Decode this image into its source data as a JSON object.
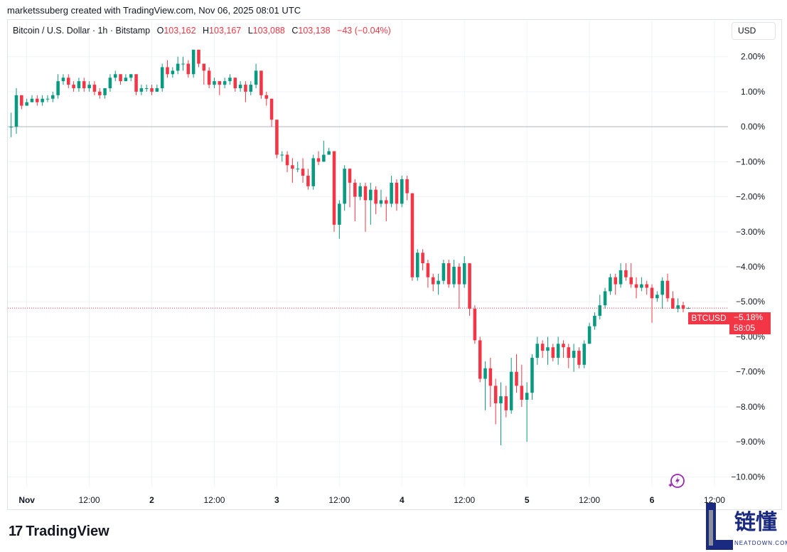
{
  "header": {
    "credit": "marketssuberg created with TradingView.com, Nov 06, 2025 08:01 UTC"
  },
  "legend": {
    "symbol": "Bitcoin / U.S. Dollar · 1h · Bitstamp",
    "o_label": "O",
    "o_value": "103,162",
    "h_label": "H",
    "h_value": "103,167",
    "l_label": "L",
    "l_value": "103,088",
    "c_label": "C",
    "c_value": "103,138",
    "change": "−43 (−0.04%)"
  },
  "currency_button": "USD",
  "ticker_tag": "BTCUSD",
  "axis_tag": {
    "pct": "−5.18%",
    "countdown": "58:05"
  },
  "footer": {
    "brand": "TradingView",
    "brand_mark": "17"
  },
  "watermark": {
    "cn": "链懂",
    "en": "NEATDOWN.COM"
  },
  "colors": {
    "up": "#089981",
    "down": "#f23645",
    "grid": "#f0f3fa",
    "zero_line": "#b2b5be",
    "accent": "#f23645"
  },
  "chart_data": {
    "type": "candlestick",
    "y_unit": "percent change",
    "ylim": [
      -10.4,
      2.4
    ],
    "y_ticks": [
      "2.00%",
      "1.00%",
      "0.00%",
      "−1.00%",
      "−2.00%",
      "−3.00%",
      "−4.00%",
      "−5.00%",
      "−6.00%",
      "−7.00%",
      "−8.00%",
      "−9.00%",
      "−10.00%"
    ],
    "y_tick_values": [
      2,
      1,
      0,
      -1,
      -2,
      -3,
      -4,
      -5,
      -6,
      -7,
      -8,
      -9,
      -10
    ],
    "x_ticks": [
      "Nov",
      "12:00",
      "2",
      "12:00",
      "3",
      "12:00",
      "4",
      "12:00",
      "5",
      "12:00",
      "6",
      "12:00"
    ],
    "x_tick_hours": [
      3,
      15,
      27,
      39,
      51,
      63,
      75,
      87,
      99,
      111,
      123,
      135
    ],
    "grid": true,
    "last_value": -5.18,
    "candles": [
      [
        0.0,
        0.0,
        0.4,
        -0.3
      ],
      [
        0.0,
        0.9,
        1.1,
        -0.2
      ],
      [
        0.9,
        0.6,
        0.9,
        0.5
      ],
      [
        0.6,
        0.7,
        0.8,
        0.6
      ],
      [
        0.7,
        0.8,
        0.9,
        0.7
      ],
      [
        0.8,
        0.7,
        0.9,
        0.6
      ],
      [
        0.7,
        0.8,
        0.9,
        0.6
      ],
      [
        0.8,
        0.8,
        0.9,
        0.7
      ],
      [
        0.8,
        0.9,
        1.0,
        0.7
      ],
      [
        0.9,
        1.3,
        1.5,
        0.8
      ],
      [
        1.3,
        1.4,
        1.5,
        1.2
      ],
      [
        1.4,
        1.2,
        1.5,
        1.1
      ],
      [
        1.2,
        1.1,
        1.3,
        1.0
      ],
      [
        1.1,
        1.3,
        1.4,
        1.0
      ],
      [
        1.3,
        1.1,
        1.4,
        1.0
      ],
      [
        1.1,
        1.2,
        1.3,
        1.0
      ],
      [
        1.2,
        1.0,
        1.3,
        0.9
      ],
      [
        1.0,
        0.9,
        1.1,
        0.8
      ],
      [
        0.9,
        1.1,
        1.1,
        0.8
      ],
      [
        1.1,
        1.4,
        1.5,
        1.0
      ],
      [
        1.4,
        1.5,
        1.6,
        1.3
      ],
      [
        1.5,
        1.3,
        1.5,
        1.2
      ],
      [
        1.3,
        1.4,
        1.5,
        1.3
      ],
      [
        1.4,
        1.5,
        1.5,
        1.3
      ],
      [
        1.5,
        1.0,
        1.5,
        0.9
      ],
      [
        1.0,
        1.1,
        1.2,
        0.9
      ],
      [
        1.1,
        1.1,
        1.2,
        1.0
      ],
      [
        1.1,
        1.0,
        1.2,
        0.9
      ],
      [
        1.0,
        1.1,
        1.2,
        1.0
      ],
      [
        1.1,
        1.7,
        1.8,
        1.0
      ],
      [
        1.7,
        1.5,
        1.9,
        1.4
      ],
      [
        1.5,
        1.6,
        1.7,
        1.4
      ],
      [
        1.6,
        1.8,
        2.0,
        1.5
      ],
      [
        1.8,
        1.8,
        2.0,
        1.6
      ],
      [
        1.8,
        1.5,
        1.9,
        1.4
      ],
      [
        1.5,
        2.2,
        2.2,
        1.4
      ],
      [
        2.2,
        1.8,
        2.2,
        1.7
      ],
      [
        1.8,
        1.6,
        1.8,
        1.2
      ],
      [
        1.6,
        1.2,
        1.7,
        1.1
      ],
      [
        1.2,
        1.3,
        1.4,
        1.1
      ],
      [
        1.3,
        1.2,
        1.3,
        0.9
      ],
      [
        1.2,
        1.3,
        1.4,
        1.1
      ],
      [
        1.3,
        1.4,
        1.5,
        1.2
      ],
      [
        1.4,
        1.1,
        1.4,
        1.0
      ],
      [
        1.1,
        1.2,
        1.3,
        1.0
      ],
      [
        1.2,
        1.0,
        1.3,
        0.7
      ],
      [
        1.0,
        1.2,
        1.3,
        0.9
      ],
      [
        1.2,
        1.6,
        1.8,
        1.1
      ],
      [
        1.6,
        0.9,
        1.6,
        0.8
      ],
      [
        0.9,
        0.8,
        1.0,
        0.6
      ],
      [
        0.8,
        0.2,
        0.8,
        0.0
      ],
      [
        0.2,
        -0.8,
        0.2,
        -0.9
      ],
      [
        -0.8,
        -0.8,
        -0.7,
        -1.0
      ],
      [
        -0.8,
        -1.1,
        -0.7,
        -1.3
      ],
      [
        -1.1,
        -1.2,
        -0.9,
        -1.6
      ],
      [
        -1.2,
        -1.2,
        -1.0,
        -1.3
      ],
      [
        -1.2,
        -1.4,
        -0.9,
        -1.6
      ],
      [
        -1.4,
        -1.7,
        -1.2,
        -1.8
      ],
      [
        -1.7,
        -0.9,
        -0.8,
        -1.8
      ],
      [
        -0.9,
        -1.0,
        -0.7,
        -1.1
      ],
      [
        -1.0,
        -0.8,
        -0.4,
        -1.0
      ],
      [
        -0.8,
        -0.7,
        -0.6,
        -0.8
      ],
      [
        -0.7,
        -2.8,
        -0.7,
        -3.0
      ],
      [
        -2.8,
        -2.2,
        -2.1,
        -3.2
      ],
      [
        -2.2,
        -1.2,
        -1.1,
        -2.4
      ],
      [
        -1.2,
        -1.6,
        -1.2,
        -2.3
      ],
      [
        -1.6,
        -2.0,
        -1.5,
        -2.7
      ],
      [
        -2.0,
        -1.7,
        -1.6,
        -2.1
      ],
      [
        -1.7,
        -2.1,
        -1.6,
        -3.0
      ],
      [
        -2.1,
        -1.8,
        -1.6,
        -2.8
      ],
      [
        -1.8,
        -2.2,
        -1.7,
        -2.5
      ],
      [
        -2.2,
        -2.1,
        -1.8,
        -2.3
      ],
      [
        -2.1,
        -2.2,
        -2.0,
        -2.7
      ],
      [
        -2.2,
        -1.6,
        -1.4,
        -2.3
      ],
      [
        -1.6,
        -2.2,
        -1.5,
        -2.4
      ],
      [
        -2.2,
        -1.5,
        -1.4,
        -2.3
      ],
      [
        -1.5,
        -1.9,
        -1.4,
        -2.1
      ],
      [
        -1.9,
        -4.3,
        -1.9,
        -4.4
      ],
      [
        -4.3,
        -3.6,
        -3.5,
        -4.4
      ],
      [
        -3.6,
        -3.9,
        -3.5,
        -4.1
      ],
      [
        -3.9,
        -4.3,
        -3.8,
        -4.6
      ],
      [
        -4.3,
        -4.5,
        -4.2,
        -4.7
      ],
      [
        -4.5,
        -4.4,
        -4.2,
        -4.8
      ],
      [
        -4.4,
        -3.9,
        -3.8,
        -4.5
      ],
      [
        -3.9,
        -4.5,
        -3.8,
        -4.6
      ],
      [
        -4.5,
        -4.0,
        -3.8,
        -4.6
      ],
      [
        -4.0,
        -4.5,
        -3.9,
        -5.2
      ],
      [
        -4.5,
        -3.9,
        -3.7,
        -4.6
      ],
      [
        -3.9,
        -5.2,
        -3.9,
        -5.4
      ],
      [
        -5.2,
        -6.1,
        -5.1,
        -6.2
      ],
      [
        -6.1,
        -7.2,
        -6.0,
        -7.3
      ],
      [
        -7.2,
        -6.9,
        -6.7,
        -8.1
      ],
      [
        -6.9,
        -7.4,
        -6.6,
        -8.0
      ],
      [
        -7.4,
        -7.9,
        -7.2,
        -8.5
      ],
      [
        -7.9,
        -7.7,
        -7.3,
        -9.1
      ],
      [
        -7.7,
        -8.1,
        -7.4,
        -8.3
      ],
      [
        -8.1,
        -7.0,
        -6.6,
        -8.2
      ],
      [
        -7.0,
        -7.4,
        -6.5,
        -7.6
      ],
      [
        -7.4,
        -7.8,
        -6.8,
        -8.0
      ],
      [
        -7.8,
        -7.6,
        -7.3,
        -9.0
      ],
      [
        -7.6,
        -6.6,
        -6.5,
        -7.8
      ],
      [
        -6.6,
        -6.2,
        -6.0,
        -6.8
      ],
      [
        -6.2,
        -6.4,
        -6.1,
        -6.6
      ],
      [
        -6.4,
        -6.3,
        -6.0,
        -6.8
      ],
      [
        -6.3,
        -6.6,
        -6.2,
        -6.7
      ],
      [
        -6.6,
        -6.2,
        -6.0,
        -6.8
      ],
      [
        -6.2,
        -6.3,
        -6.1,
        -6.6
      ],
      [
        -6.3,
        -6.6,
        -6.2,
        -6.9
      ],
      [
        -6.6,
        -6.4,
        -6.2,
        -7.0
      ],
      [
        -6.4,
        -6.8,
        -6.3,
        -6.9
      ],
      [
        -6.8,
        -6.2,
        -6.1,
        -6.9
      ],
      [
        -6.2,
        -5.7,
        -5.6,
        -6.2
      ],
      [
        -5.7,
        -5.4,
        -5.3,
        -5.8
      ],
      [
        -5.4,
        -5.1,
        -4.8,
        -5.5
      ],
      [
        -5.1,
        -4.7,
        -4.6,
        -5.2
      ],
      [
        -4.7,
        -4.3,
        -4.2,
        -4.8
      ],
      [
        -4.3,
        -4.5,
        -4.2,
        -4.8
      ],
      [
        -4.5,
        -4.1,
        -3.9,
        -4.6
      ],
      [
        -4.1,
        -4.3,
        -3.9,
        -4.4
      ],
      [
        -4.3,
        -4.5,
        -3.9,
        -4.6
      ],
      [
        -4.5,
        -4.6,
        -4.3,
        -4.9
      ],
      [
        -4.6,
        -4.5,
        -4.3,
        -4.7
      ],
      [
        -4.5,
        -4.6,
        -4.4,
        -4.8
      ],
      [
        -4.6,
        -4.9,
        -4.5,
        -5.6
      ],
      [
        -4.9,
        -4.8,
        -4.7,
        -5.0
      ],
      [
        -4.8,
        -4.4,
        -4.3,
        -5.2
      ],
      [
        -4.4,
        -4.9,
        -4.2,
        -5.0
      ],
      [
        -4.9,
        -5.2,
        -4.7,
        -5.2
      ],
      [
        -5.2,
        -5.1,
        -4.9,
        -5.3
      ],
      [
        -5.1,
        -5.2,
        -5.0,
        -5.3
      ],
      [
        -5.2,
        -5.18,
        -5.15,
        -5.2
      ]
    ]
  }
}
